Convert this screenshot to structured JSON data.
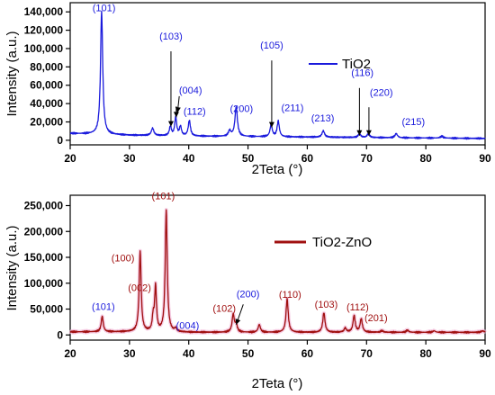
{
  "chart_data": [
    {
      "type": "line",
      "xlabel": "2Teta (°)",
      "ylabel": "Intensity (a.u.)",
      "xlim": [
        20,
        90
      ],
      "ylim": [
        -5000,
        150000
      ],
      "x_ticks": [
        20,
        30,
        40,
        50,
        60,
        70,
        80,
        90
      ],
      "y_ticks": [
        0,
        20000,
        40000,
        60000,
        80000,
        100000,
        120000,
        140000
      ],
      "x_tick_labels": [
        "20",
        "30",
        "40",
        "50",
        "60",
        "70",
        "80",
        "90"
      ],
      "y_tick_labels": [
        "0",
        "20,000",
        "40,000",
        "60,000",
        "80,000",
        "100,000",
        "120,000",
        "140,000"
      ],
      "legend_position": "top-right",
      "series": [
        {
          "name": "TiO2",
          "color": "#1a1adc",
          "baseline": [
            [
              20,
              7500
            ],
            [
              30,
              5500
            ],
            [
              40,
              4500
            ],
            [
              50,
              4000
            ],
            [
              60,
              3500
            ],
            [
              70,
              3000
            ],
            [
              80,
              2500
            ],
            [
              90,
              2000
            ]
          ],
          "peaks": [
            {
              "x": 25.3,
              "y": 134000,
              "w": 0.22
            },
            {
              "x": 33.9,
              "y": 8000,
              "w": 0.25
            },
            {
              "x": 36.9,
              "y": 10000,
              "w": 0.2
            },
            {
              "x": 37.8,
              "y": 20000,
              "w": 0.2
            },
            {
              "x": 38.6,
              "y": 10000,
              "w": 0.2
            },
            {
              "x": 40.1,
              "y": 17000,
              "w": 0.22
            },
            {
              "x": 46.9,
              "y": 6000,
              "w": 0.25
            },
            {
              "x": 48.0,
              "y": 32000,
              "w": 0.25
            },
            {
              "x": 53.9,
              "y": 13000,
              "w": 0.22
            },
            {
              "x": 55.1,
              "y": 17000,
              "w": 0.22
            },
            {
              "x": 62.7,
              "y": 7000,
              "w": 0.25
            },
            {
              "x": 68.8,
              "y": 4000,
              "w": 0.25
            },
            {
              "x": 70.3,
              "y": 4000,
              "w": 0.25
            },
            {
              "x": 75.0,
              "y": 4500,
              "w": 0.25
            },
            {
              "x": 82.7,
              "y": 2000,
              "w": 0.3
            }
          ]
        }
      ],
      "annotations": [
        {
          "text": "(101)",
          "x": 25.7,
          "y": 140500
        },
        {
          "text": "(103)",
          "x": 37.0,
          "y": 110000
        },
        {
          "text": "(004)",
          "x": 40.3,
          "y": 51000
        },
        {
          "text": "(112)",
          "x": 41.0,
          "y": 28000
        },
        {
          "text": "(200)",
          "x": 48.9,
          "y": 31000
        },
        {
          "text": "(105)",
          "x": 54.0,
          "y": 100000
        },
        {
          "text": "(211)",
          "x": 57.5,
          "y": 32000
        },
        {
          "text": "(213)",
          "x": 62.6,
          "y": 20500
        },
        {
          "text": "(116)",
          "x": 69.3,
          "y": 70000
        },
        {
          "text": "(220)",
          "x": 72.5,
          "y": 48500
        },
        {
          "text": "(215)",
          "x": 77.9,
          "y": 16500
        }
      ],
      "arrows": [
        {
          "from": [
            37.0,
            97000
          ],
          "to": [
            37.0,
            15000
          ]
        },
        {
          "from": [
            38.4,
            48000
          ],
          "to": [
            38.1,
            30000
          ]
        },
        {
          "from": [
            37.9,
            37000
          ],
          "to": [
            37.9,
            25000
          ]
        },
        {
          "from": [
            54.0,
            87000
          ],
          "to": [
            54.0,
            14000
          ]
        },
        {
          "from": [
            68.8,
            57000
          ],
          "to": [
            68.8,
            5000
          ]
        },
        {
          "from": [
            70.4,
            36000
          ],
          "to": [
            70.4,
            5000
          ]
        }
      ]
    },
    {
      "type": "line",
      "xlabel": "2Teta (°)",
      "ylabel": "Intensity (a.u.)",
      "xlim": [
        20,
        90
      ],
      "ylim": [
        -10000,
        270000
      ],
      "x_ticks": [
        20,
        30,
        40,
        50,
        60,
        70,
        80,
        90
      ],
      "y_ticks": [
        0,
        50000,
        100000,
        150000,
        200000,
        250000
      ],
      "x_tick_labels": [
        "20",
        "30",
        "40",
        "50",
        "60",
        "70",
        "80",
        "90"
      ],
      "y_tick_labels": [
        "0",
        "50,000",
        "100,000",
        "150,000",
        "200,000",
        "250,000"
      ],
      "legend_position": "right",
      "series": [
        {
          "name": "TiO2-ZnO",
          "color": "#a01010",
          "baseline": [
            [
              20,
              6000
            ],
            [
              30,
              6000
            ],
            [
              40,
              5000
            ],
            [
              50,
              5000
            ],
            [
              60,
              5000
            ],
            [
              70,
              5000
            ],
            [
              80,
              5000
            ],
            [
              90,
              5000
            ]
          ],
          "peaks": [
            {
              "x": 25.4,
              "y": 30000,
              "w": 0.2
            },
            {
              "x": 31.8,
              "y": 156000,
              "w": 0.2
            },
            {
              "x": 34.0,
              "y": 27000,
              "w": 0.18
            },
            {
              "x": 34.4,
              "y": 86000,
              "w": 0.18
            },
            {
              "x": 36.2,
              "y": 236000,
              "w": 0.2
            },
            {
              "x": 37.8,
              "y": 6000,
              "w": 0.2
            },
            {
              "x": 47.5,
              "y": 34000,
              "w": 0.22
            },
            {
              "x": 48.0,
              "y": 14000,
              "w": 0.22
            },
            {
              "x": 51.9,
              "y": 15000,
              "w": 0.22
            },
            {
              "x": 56.6,
              "y": 64000,
              "w": 0.22
            },
            {
              "x": 62.8,
              "y": 38000,
              "w": 0.22
            },
            {
              "x": 66.4,
              "y": 8000,
              "w": 0.22
            },
            {
              "x": 67.9,
              "y": 32000,
              "w": 0.22
            },
            {
              "x": 69.1,
              "y": 26000,
              "w": 0.22
            },
            {
              "x": 72.6,
              "y": 3000,
              "w": 0.25
            },
            {
              "x": 76.9,
              "y": 4000,
              "w": 0.25
            },
            {
              "x": 81.4,
              "y": 3000,
              "w": 0.25
            },
            {
              "x": 89.6,
              "y": 3000,
              "w": 0.25
            }
          ]
        }
      ],
      "annotations": [
        {
          "text": "(101)",
          "x": 25.6,
          "y": 48000,
          "color": "#1a1adc"
        },
        {
          "text": "(100)",
          "x": 28.9,
          "y": 142000,
          "color": "#a01010"
        },
        {
          "text": "(002)",
          "x": 31.7,
          "y": 84500,
          "color": "#a01010"
        },
        {
          "text": "(101)",
          "x": 35.7,
          "y": 262000,
          "color": "#a01010"
        },
        {
          "text": "(004)",
          "x": 39.8,
          "y": 11500,
          "color": "#1a1adc"
        },
        {
          "text": "(102)",
          "x": 46.0,
          "y": 44500,
          "color": "#a01010"
        },
        {
          "text": "(200)",
          "x": 50.0,
          "y": 72500,
          "color": "#1a1adc"
        },
        {
          "text": "(110)",
          "x": 57.1,
          "y": 71500,
          "color": "#a01010"
        },
        {
          "text": "(103)",
          "x": 63.2,
          "y": 53000,
          "color": "#a01010"
        },
        {
          "text": "(112)",
          "x": 68.5,
          "y": 47000,
          "color": "#a01010"
        },
        {
          "text": "(201)",
          "x": 71.6,
          "y": 26500,
          "color": "#a01010"
        }
      ],
      "arrows": [
        {
          "from": [
            49.2,
            59000
          ],
          "to": [
            48.0,
            20000
          ]
        }
      ]
    }
  ]
}
